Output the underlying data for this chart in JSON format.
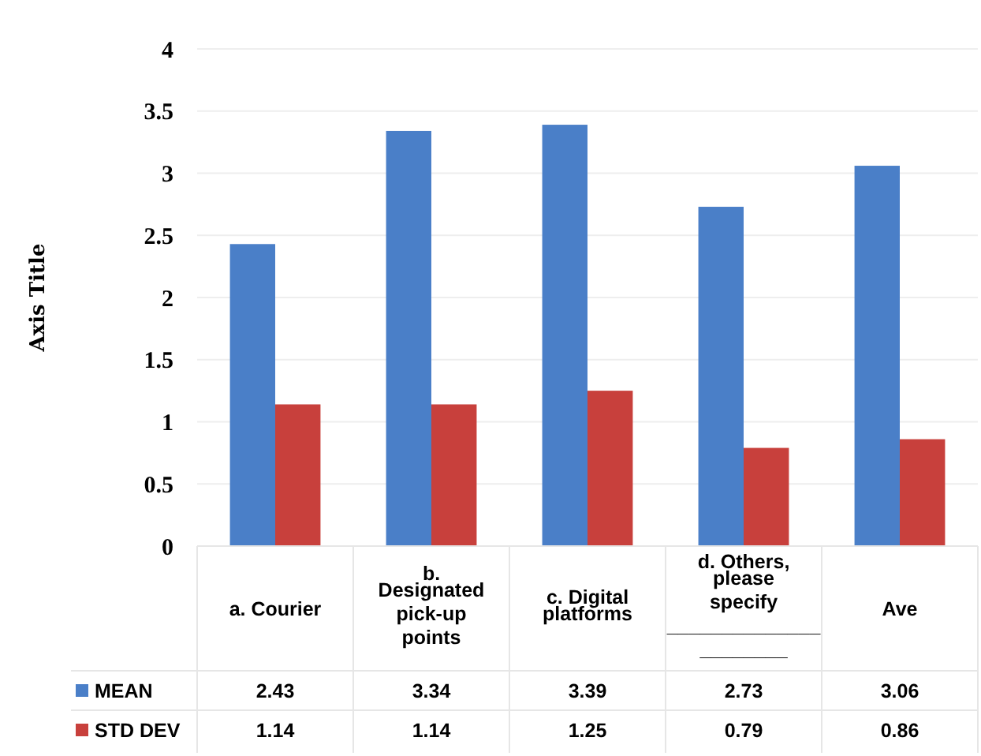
{
  "chart_data": {
    "type": "bar",
    "ylabel": "Axis Title",
    "categories": [
      "a. Courier",
      "b. Designated pick-up points",
      "c. Digital platforms",
      "d. Others, please specify ______________ ________",
      "Ave"
    ],
    "series": [
      {
        "name": "MEAN",
        "color": "#4a7fc8",
        "values": [
          2.43,
          3.34,
          3.39,
          2.73,
          3.06
        ]
      },
      {
        "name": "STD DEV",
        "color": "#c8403c",
        "values": [
          1.14,
          1.14,
          1.25,
          0.79,
          0.86
        ]
      }
    ],
    "ylim": [
      0,
      4
    ],
    "yticks": [
      0,
      0.5,
      1,
      1.5,
      2,
      2.5,
      3,
      3.5,
      4
    ],
    "grid": "y",
    "legend": "bottom",
    "data_labels": true
  }
}
